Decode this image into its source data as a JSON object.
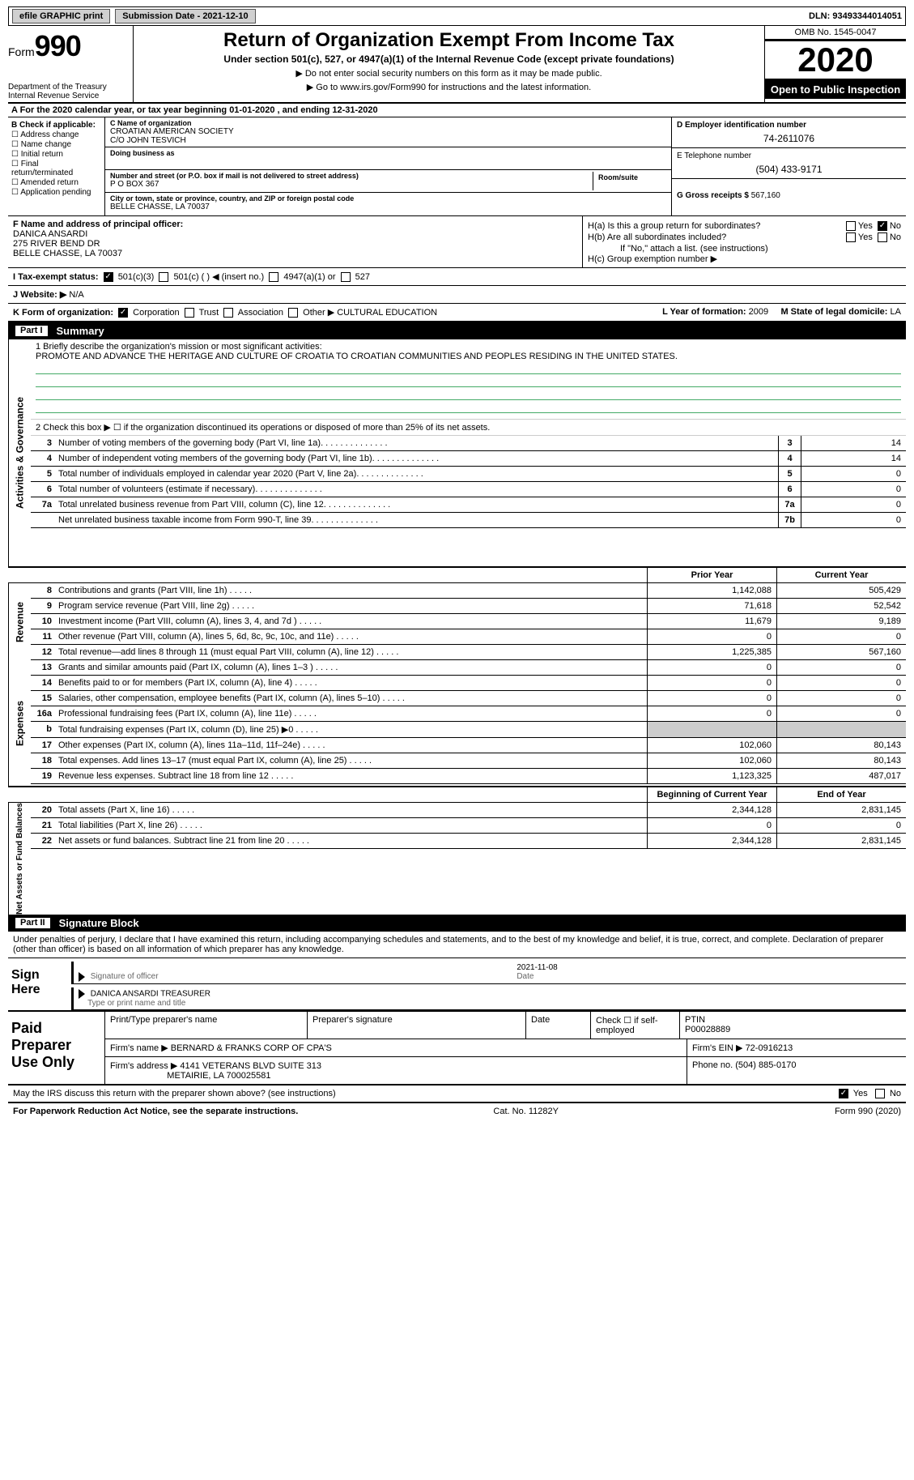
{
  "topbar": {
    "efile": "efile GRAPHIC print",
    "submission": "Submission Date - 2021-12-10",
    "dln": "DLN: 93493344014051"
  },
  "header": {
    "form_word": "Form",
    "form_num": "990",
    "dept": "Department of the Treasury\nInternal Revenue Service",
    "title": "Return of Organization Exempt From Income Tax",
    "sub": "Under section 501(c), 527, or 4947(a)(1) of the Internal Revenue Code (except private foundations)",
    "note1": "▶ Do not enter social security numbers on this form as it may be made public.",
    "note2": "▶ Go to www.irs.gov/Form990 for instructions and the latest information.",
    "omb": "OMB No. 1545-0047",
    "year": "2020",
    "inspect": "Open to Public Inspection"
  },
  "lineA": "A For the 2020 calendar year, or tax year beginning 01-01-2020   , and ending 12-31-2020",
  "sectionB": {
    "heading": "B Check if applicable:",
    "items": [
      "Address change",
      "Name change",
      "Initial return",
      "Final return/terminated",
      "Amended return",
      "Application pending"
    ]
  },
  "sectionC": {
    "name_label": "C Name of organization",
    "name": "CROATIAN AMERICAN SOCIETY",
    "co": "C/O JOHN TESVICH",
    "dba_label": "Doing business as",
    "dba": "",
    "street_label": "Number and street (or P.O. box if mail is not delivered to street address)",
    "room_label": "Room/suite",
    "street": "P O BOX 367",
    "city_label": "City or town, state or province, country, and ZIP or foreign postal code",
    "city": "BELLE CHASSE, LA  70037"
  },
  "sectionD": {
    "label": "D Employer identification number",
    "value": "74-2611076"
  },
  "sectionE": {
    "label": "E Telephone number",
    "value": "(504) 433-9171"
  },
  "sectionG": {
    "label": "G Gross receipts $",
    "value": "567,160"
  },
  "sectionF": {
    "label": "F Name and address of principal officer:",
    "name": "DANICA ANSARDI",
    "addr1": "275 RIVER BEND DR",
    "addr2": "BELLE CHASSE, LA  70037"
  },
  "sectionH": {
    "a": "H(a)  Is this a group return for subordinates?",
    "a_yes": "Yes",
    "a_no": "No",
    "b": "H(b)  Are all subordinates included?",
    "b_yes": "Yes",
    "b_no": "No",
    "b_note": "If \"No,\" attach a list. (see instructions)",
    "c": "H(c)  Group exemption number ▶"
  },
  "sectionI": {
    "label": "I   Tax-exempt status:",
    "opts": [
      "501(c)(3)",
      "501(c) (  ) ◀ (insert no.)",
      "4947(a)(1) or",
      "527"
    ]
  },
  "sectionJ": {
    "label": "J   Website: ▶",
    "value": "N/A"
  },
  "sectionK": {
    "label": "K Form of organization:",
    "opts": [
      "Corporation",
      "Trust",
      "Association",
      "Other ▶"
    ],
    "other": "CULTURAL EDUCATION"
  },
  "sectionL": {
    "label": "L Year of formation:",
    "value": "2009"
  },
  "sectionM": {
    "label": "M State of legal domicile:",
    "value": "LA"
  },
  "part1": {
    "title": "Part I",
    "name": "Summary"
  },
  "q1": {
    "label": "1  Briefly describe the organization's mission or most significant activities:",
    "text": "PROMOTE AND ADVANCE THE HERITAGE AND CULTURE OF CROATIA TO CROATIAN COMMUNITIES AND PEOPLES RESIDING IN THE UNITED STATES."
  },
  "q2": "2   Check this box ▶ ☐  if the organization discontinued its operations or disposed of more than 25% of its net assets.",
  "governance": [
    {
      "n": "3",
      "t": "Number of voting members of the governing body (Part VI, line 1a)",
      "bn": "3",
      "v": "14"
    },
    {
      "n": "4",
      "t": "Number of independent voting members of the governing body (Part VI, line 1b)",
      "bn": "4",
      "v": "14"
    },
    {
      "n": "5",
      "t": "Total number of individuals employed in calendar year 2020 (Part V, line 2a)",
      "bn": "5",
      "v": "0"
    },
    {
      "n": "6",
      "t": "Total number of volunteers (estimate if necessary)",
      "bn": "6",
      "v": "0"
    },
    {
      "n": "7a",
      "t": "Total unrelated business revenue from Part VIII, column (C), line 12",
      "bn": "7a",
      "v": "0"
    },
    {
      "n": "",
      "t": "Net unrelated business taxable income from Form 990-T, line 39",
      "bn": "7b",
      "v": "0"
    }
  ],
  "fin_hdr": {
    "c1": "Prior Year",
    "c2": "Current Year"
  },
  "revenue": [
    {
      "n": "8",
      "t": "Contributions and grants (Part VIII, line 1h)",
      "c1": "1,142,088",
      "c2": "505,429"
    },
    {
      "n": "9",
      "t": "Program service revenue (Part VIII, line 2g)",
      "c1": "71,618",
      "c2": "52,542"
    },
    {
      "n": "10",
      "t": "Investment income (Part VIII, column (A), lines 3, 4, and 7d )",
      "c1": "11,679",
      "c2": "9,189"
    },
    {
      "n": "11",
      "t": "Other revenue (Part VIII, column (A), lines 5, 6d, 8c, 9c, 10c, and 11e)",
      "c1": "0",
      "c2": "0"
    },
    {
      "n": "12",
      "t": "Total revenue—add lines 8 through 11 (must equal Part VIII, column (A), line 12)",
      "c1": "1,225,385",
      "c2": "567,160"
    }
  ],
  "expenses": [
    {
      "n": "13",
      "t": "Grants and similar amounts paid (Part IX, column (A), lines 1–3 )",
      "c1": "0",
      "c2": "0"
    },
    {
      "n": "14",
      "t": "Benefits paid to or for members (Part IX, column (A), line 4)",
      "c1": "0",
      "c2": "0"
    },
    {
      "n": "15",
      "t": "Salaries, other compensation, employee benefits (Part IX, column (A), lines 5–10)",
      "c1": "0",
      "c2": "0"
    },
    {
      "n": "16a",
      "t": "Professional fundraising fees (Part IX, column (A), line 11e)",
      "c1": "0",
      "c2": "0"
    },
    {
      "n": "b",
      "t": "Total fundraising expenses (Part IX, column (D), line 25) ▶0",
      "c1": "",
      "c2": "",
      "shade": true
    },
    {
      "n": "17",
      "t": "Other expenses (Part IX, column (A), lines 11a–11d, 11f–24e)",
      "c1": "102,060",
      "c2": "80,143"
    },
    {
      "n": "18",
      "t": "Total expenses. Add lines 13–17 (must equal Part IX, column (A), line 25)",
      "c1": "102,060",
      "c2": "80,143"
    },
    {
      "n": "19",
      "t": "Revenue less expenses. Subtract line 18 from line 12",
      "c1": "1,123,325",
      "c2": "487,017"
    }
  ],
  "nab_hdr": {
    "c1": "Beginning of Current Year",
    "c2": "End of Year"
  },
  "netassets": [
    {
      "n": "20",
      "t": "Total assets (Part X, line 16)",
      "c1": "2,344,128",
      "c2": "2,831,145"
    },
    {
      "n": "21",
      "t": "Total liabilities (Part X, line 26)",
      "c1": "0",
      "c2": "0"
    },
    {
      "n": "22",
      "t": "Net assets or fund balances. Subtract line 21 from line 20",
      "c1": "2,344,128",
      "c2": "2,831,145"
    }
  ],
  "part2": {
    "title": "Part II",
    "name": "Signature Block"
  },
  "sig_intro": "Under penalties of perjury, I declare that I have examined this return, including accompanying schedules and statements, and to the best of my knowledge and belief, it is true, correct, and complete. Declaration of preparer (other than officer) is based on all information of which preparer has any knowledge.",
  "sign": {
    "here": "Sign Here",
    "officer": "Signature of officer",
    "date_label": "Date",
    "date": "2021-11-08",
    "name": "DANICA ANSARDI  TREASURER",
    "name_label": "Type or print name and title"
  },
  "paid": {
    "label": "Paid Preparer Use Only",
    "h": [
      "Print/Type preparer's name",
      "Preparer's signature",
      "Date"
    ],
    "check": "Check ☐ if self-employed",
    "ptin_label": "PTIN",
    "ptin": "P00028889",
    "firm_name_label": "Firm's name    ▶",
    "firm_name": "BERNARD & FRANKS CORP OF CPA'S",
    "firm_ein_label": "Firm's EIN ▶",
    "firm_ein": "72-0916213",
    "firm_addr_label": "Firm's address ▶",
    "firm_addr1": "4141 VETERANS BLVD SUITE 313",
    "firm_addr2": "METAIRIE, LA  700025581",
    "phone_label": "Phone no.",
    "phone": "(504) 885-0170"
  },
  "may_irs": {
    "q": "May the IRS discuss this return with the preparer shown above? (see instructions)",
    "yes": "Yes",
    "no": "No"
  },
  "footer": {
    "left": "For Paperwork Reduction Act Notice, see the separate instructions.",
    "mid": "Cat. No. 11282Y",
    "right": "Form 990 (2020)"
  },
  "sidetabs": {
    "abg": "Activities & Governance",
    "rev": "Revenue",
    "exp": "Expenses",
    "nab": "Net Assets or Fund Balances"
  }
}
